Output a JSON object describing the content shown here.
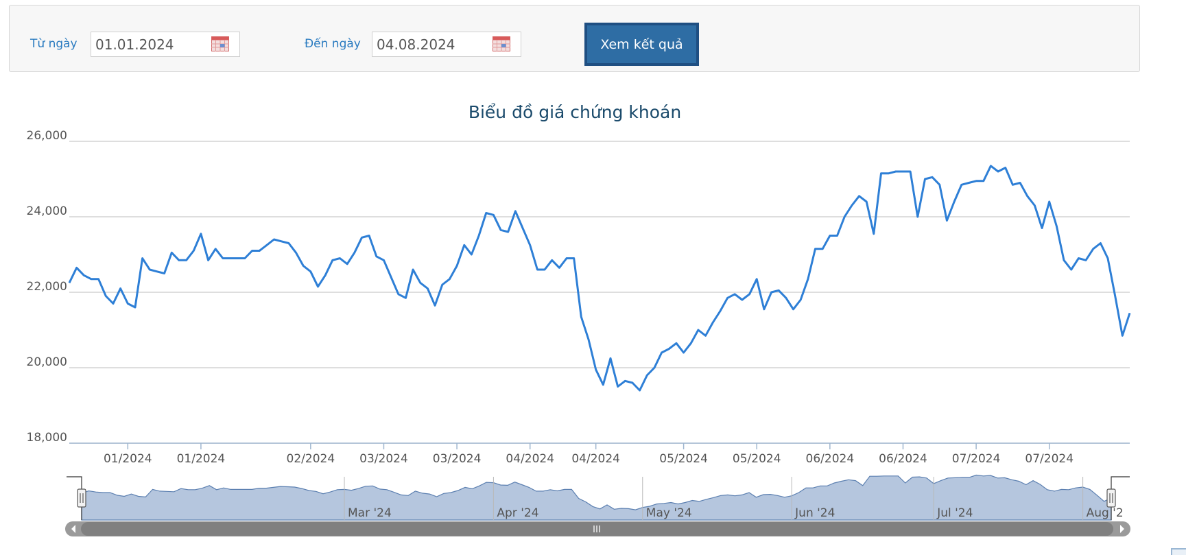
{
  "form": {
    "from_label": "Từ ngày",
    "from_value": "01.01.2024",
    "to_label": "Đến ngày",
    "to_value": "04.08.2024",
    "submit_label": "Xem kết quả"
  },
  "colors": {
    "line": "#2e7fd6",
    "navigator_fill": "#b5c6de",
    "navigator_line": "#5b7fb0",
    "title": "#1a4a6b"
  },
  "icons": {
    "calendar": "calendar-icon",
    "scroll_left": "arrow-left-icon",
    "scroll_right": "arrow-right-icon",
    "grip": "grip-icon"
  },
  "chart_data": {
    "type": "line",
    "title": "Biểu đồ giá chứng khoán",
    "ylim": [
      18000,
      26000
    ],
    "yticks": [
      "18,000",
      "20,000",
      "22,000",
      "24,000",
      "26,000"
    ],
    "ytick_values": [
      18000,
      20000,
      22000,
      24000,
      26000
    ],
    "grid": true,
    "x_tick_labels": [
      "01/2024",
      "01/2024",
      "02/2024",
      "03/2024",
      "03/2024",
      "04/2024",
      "04/2024",
      "05/2024",
      "05/2024",
      "06/2024",
      "06/2024",
      "07/2024",
      "07/2024"
    ],
    "x_tick_index": [
      8,
      18,
      33,
      43,
      53,
      63,
      72,
      84,
      94,
      104,
      114,
      124,
      134
    ],
    "series": [
      {
        "values": [
          22250,
          22650,
          22450,
          22350,
          22350,
          21900,
          21700,
          22100,
          21700,
          21600,
          22900,
          22600,
          22550,
          22500,
          23050,
          22850,
          22850,
          23100,
          23550,
          22850,
          23150,
          22900,
          22900,
          22900,
          22900,
          23100,
          23100,
          23250,
          23400,
          23350,
          23300,
          23050,
          22700,
          22550,
          22150,
          22450,
          22850,
          22900,
          22750,
          23050,
          23450,
          23500,
          22950,
          22850,
          22400,
          21950,
          21850,
          22600,
          22250,
          22100,
          21650,
          22200,
          22350,
          22700,
          23250,
          23000,
          23500,
          24100,
          24050,
          23650,
          23600,
          24150,
          23700,
          23250,
          22600,
          22600,
          22850,
          22650,
          22900,
          22900,
          21350,
          20750,
          19950,
          19550,
          20250,
          19500,
          19650,
          19600,
          19400,
          19800,
          20000,
          20400,
          20500,
          20650,
          20400,
          20650,
          21000,
          20850,
          21200,
          21500,
          21850,
          21950,
          21800,
          21950,
          22350,
          21550,
          22000,
          22050,
          21850,
          21550,
          21800,
          22350,
          23150,
          23150,
          23500,
          23500,
          24000,
          24300,
          24550,
          24400,
          23550,
          25150,
          25150,
          25200,
          25200,
          25200,
          24000,
          25000,
          25050,
          24850,
          23900,
          24400,
          24850,
          24900,
          24950,
          24950,
          25350,
          25200,
          25300,
          24850,
          24900,
          24550,
          24300,
          23700,
          24400,
          23750,
          22850,
          22600,
          22900,
          22850,
          23150,
          23300,
          22900,
          21900,
          20850,
          21450
        ]
      }
    ],
    "navigator": {
      "labels": [
        "Mar '24",
        "Apr '24",
        "May '24",
        "Jun '24",
        "Jul '24",
        "Aug '2"
      ],
      "label_index": [
        37,
        58,
        79,
        100,
        120,
        141
      ]
    }
  }
}
